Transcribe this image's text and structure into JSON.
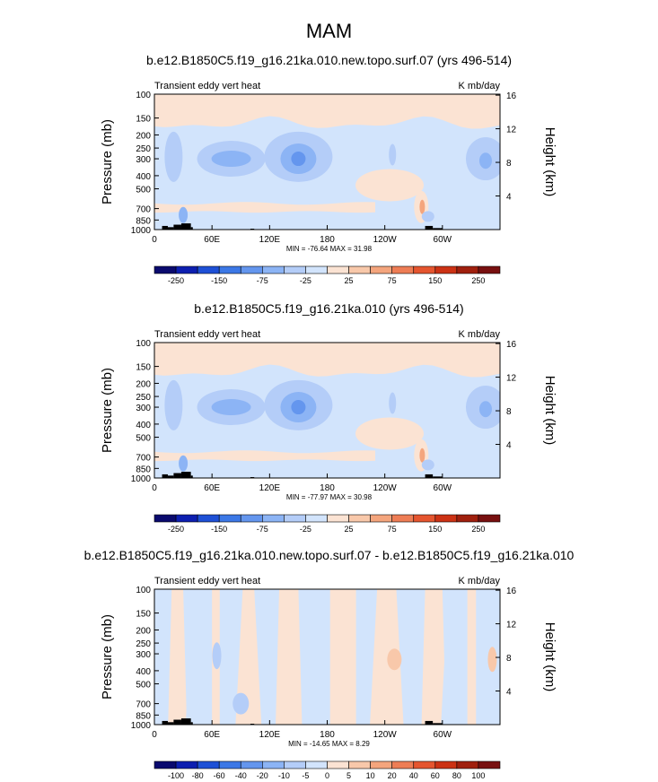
{
  "title": "MAM",
  "chart_data": [
    {
      "type": "heatmap",
      "title": "b.e12.B1850C5.f19_g16.21ka.010.new.topo.surf.07 (yrs 496-514)",
      "left_label": "Transient eddy vert heat",
      "units": "K mb/day",
      "ylabel": "Pressure (mb)",
      "ylabel_right": "Height (km)",
      "x_ticks": [
        "0",
        "60E",
        "120E",
        "180",
        "120W",
        "60W"
      ],
      "y_ticks": [
        "100",
        "150",
        "200",
        "250",
        "300",
        "400",
        "500",
        "700",
        "850",
        "1000"
      ],
      "y_ticks_right": [
        "16",
        "12",
        "8",
        "4"
      ],
      "minmax": "MIN = -76.64  MAX =  31.98",
      "colorbar_labels": [
        "-250",
        "-150",
        "-75",
        "-25",
        "25",
        "75",
        "150",
        "250"
      ],
      "colors": [
        "#0a0a6e",
        "#0d1fb0",
        "#1e50d6",
        "#3c78e6",
        "#6496ee",
        "#8cb4f5",
        "#b4cdf8",
        "#d2e4fc",
        "#fbe3d3",
        "#f8c8aa",
        "#f4a57d",
        "#ee7d55",
        "#e5552f",
        "#cc3214",
        "#a0200e",
        "#781010"
      ],
      "features": {
        "stratosphere": "weak positive (~10)",
        "troposphere": "weak negative (~-20)",
        "minima_near_300mb": [
          "80E",
          "150E",
          "340E"
        ],
        "max_near_650mb": "60W"
      }
    },
    {
      "type": "heatmap",
      "title": "b.e12.B1850C5.f19_g16.21ka.010 (yrs 496-514)",
      "left_label": "Transient eddy vert heat",
      "units": "K mb/day",
      "ylabel": "Pressure (mb)",
      "ylabel_right": "Height (km)",
      "x_ticks": [
        "0",
        "60E",
        "120E",
        "180",
        "120W",
        "60W"
      ],
      "y_ticks": [
        "100",
        "150",
        "200",
        "250",
        "300",
        "400",
        "500",
        "700",
        "850",
        "1000"
      ],
      "y_ticks_right": [
        "16",
        "12",
        "8",
        "4"
      ],
      "minmax": "MIN = -77.97  MAX =  30.98",
      "colorbar_labels": [
        "-250",
        "-150",
        "-75",
        "-25",
        "25",
        "75",
        "150",
        "250"
      ],
      "colors": [
        "#0a0a6e",
        "#0d1fb0",
        "#1e50d6",
        "#3c78e6",
        "#6496ee",
        "#8cb4f5",
        "#b4cdf8",
        "#d2e4fc",
        "#fbe3d3",
        "#f8c8aa",
        "#f4a57d",
        "#ee7d55",
        "#e5552f",
        "#cc3214",
        "#a0200e",
        "#781010"
      ]
    },
    {
      "type": "heatmap",
      "title": "b.e12.B1850C5.f19_g16.21ka.010.new.topo.surf.07 - b.e12.B1850C5.f19_g16.21ka.010",
      "left_label": "Transient eddy vert heat",
      "units": "K mb/day",
      "ylabel": "Pressure (mb)",
      "ylabel_right": "Height (km)",
      "x_ticks": [
        "0",
        "60E",
        "120E",
        "180",
        "120W",
        "60W"
      ],
      "y_ticks": [
        "100",
        "150",
        "200",
        "250",
        "300",
        "400",
        "500",
        "700",
        "850",
        "1000"
      ],
      "y_ticks_right": [
        "16",
        "12",
        "8",
        "4"
      ],
      "minmax": "MIN = -14.65  MAX =  8.29",
      "colorbar_labels": [
        "-100",
        "-80",
        "-60",
        "-40",
        "-20",
        "-10",
        "-5",
        "0",
        "5",
        "10",
        "20",
        "40",
        "60",
        "80",
        "100"
      ],
      "colors": [
        "#0a0a6e",
        "#0d1fb0",
        "#1e50d6",
        "#3c78e6",
        "#6496ee",
        "#8cb4f5",
        "#b4cdf8",
        "#d2e4fc",
        "#fbe3d3",
        "#f8c8aa",
        "#f4a57d",
        "#ee7d55",
        "#e5552f",
        "#cc3214",
        "#a0200e",
        "#781010"
      ]
    }
  ]
}
